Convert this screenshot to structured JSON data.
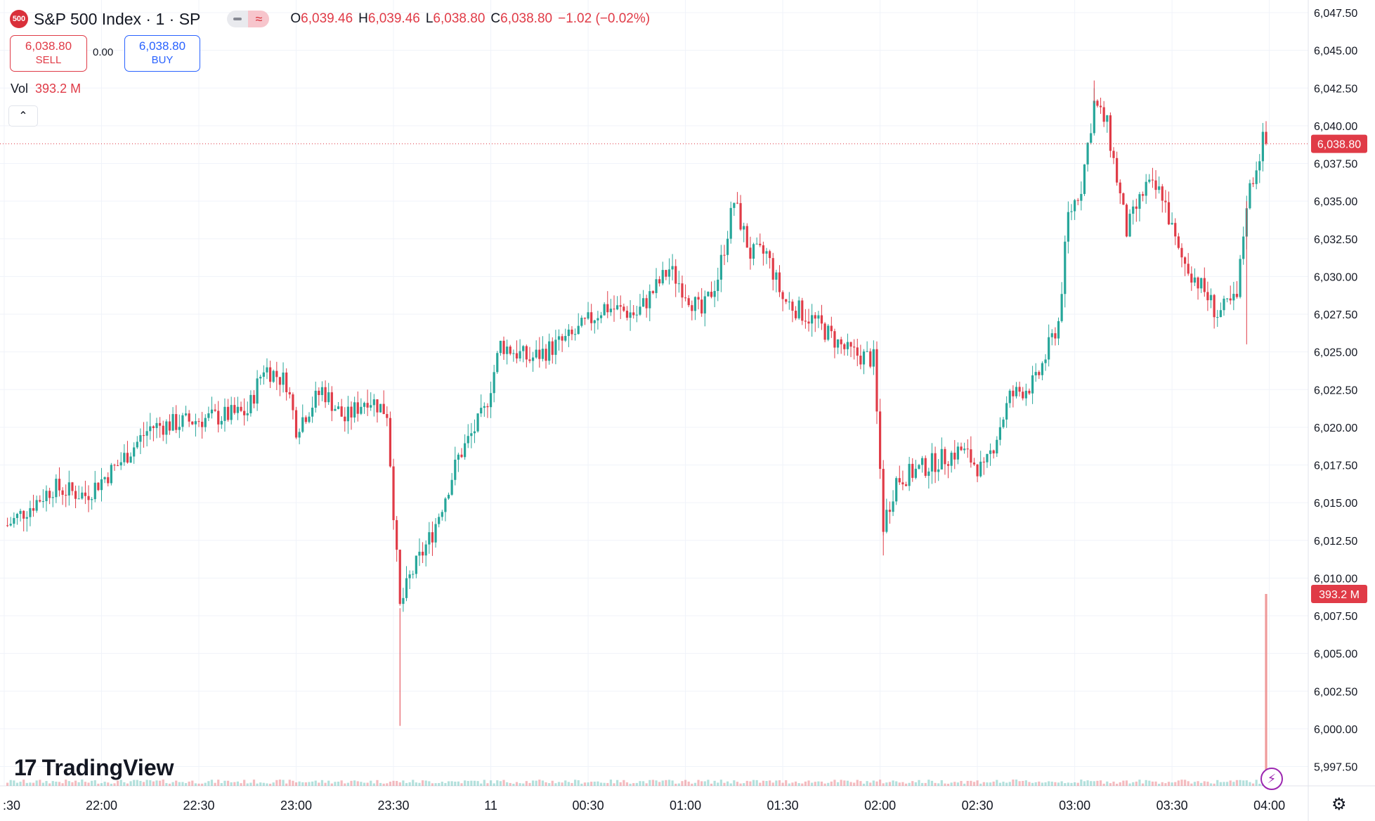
{
  "header": {
    "symbol_badge": "500",
    "title": "S&P 500 Index · 1 · SP",
    "ohlc": [
      {
        "key": "O",
        "value": "6,039.46"
      },
      {
        "key": "H",
        "value": "6,039.46"
      },
      {
        "key": "L",
        "value": "6,038.80"
      },
      {
        "key": "C",
        "value": "6,038.80"
      }
    ],
    "change": "−1.02 (−0.02%)"
  },
  "trade": {
    "sell_price": "6,038.80",
    "sell_label": "SELL",
    "spread": "0.00",
    "buy_price": "6,038.80",
    "buy_label": "BUY"
  },
  "volume": {
    "label": "Vol",
    "value": "393.2 M",
    "badge": "393.2 M"
  },
  "logo": {
    "mark": "17",
    "text": "TradingView"
  },
  "icons": {
    "collapse": "chevron-up-icon",
    "bolt": "lightning-icon",
    "settings": "gear-icon"
  },
  "colors": {
    "up": "#26a69a",
    "down": "#e03b47",
    "price_badge": "#e03b47",
    "volume_spike": "#ef9a9a"
  },
  "chart_data": {
    "type": "candlestick",
    "ylim": [
      5996.0,
      6048.5
    ],
    "y_ticks": [
      "6,047.50",
      "6,045.00",
      "6,042.50",
      "6,040.00",
      "6,037.50",
      "6,035.00",
      "6,032.50",
      "6,030.00",
      "6,027.50",
      "6,025.00",
      "6,022.50",
      "6,020.00",
      "6,017.50",
      "6,015.00",
      "6,012.50",
      "6,010.00",
      "6,007.50",
      "6,005.00",
      "6,002.50",
      "6,000.00",
      "5,997.50"
    ],
    "x_ticks": [
      ":30",
      "22:00",
      "22:30",
      "23:00",
      "23:30",
      "11",
      "00:30",
      "01:00",
      "01:30",
      "02:00",
      "02:30",
      "03:00",
      "03:30",
      "04:00"
    ],
    "last_price": "6,038.80",
    "last_price_value": 6038.8,
    "price_path": [
      {
        "t": "21:31",
        "p": 6013.5
      },
      {
        "t": "21:45",
        "p": 6016.0
      },
      {
        "t": "21:55",
        "p": 6015.5
      },
      {
        "t": "22:05",
        "p": 6017.5
      },
      {
        "t": "22:15",
        "p": 6020.0
      },
      {
        "t": "22:30",
        "p": 6020.5
      },
      {
        "t": "22:45",
        "p": 6021.0
      },
      {
        "t": "22:50",
        "p": 6024.0
      },
      {
        "t": "22:57",
        "p": 6023.0
      },
      {
        "t": "23:00",
        "p": 6020.0
      },
      {
        "t": "23:08",
        "p": 6022.5
      },
      {
        "t": "23:15",
        "p": 6020.5
      },
      {
        "t": "23:22",
        "p": 6022.0
      },
      {
        "t": "23:28",
        "p": 6021.0
      },
      {
        "t": "23:32",
        "p": 6008.0
      },
      {
        "t": "23:35",
        "p": 6010.0
      },
      {
        "t": "23:42",
        "p": 6013.0
      },
      {
        "t": "23:50",
        "p": 6018.0
      },
      {
        "t": "23:58",
        "p": 6021.0
      },
      {
        "t": "00:03",
        "p": 6025.5
      },
      {
        "t": "00:12",
        "p": 6024.5
      },
      {
        "t": "00:25",
        "p": 6026.0
      },
      {
        "t": "00:35",
        "p": 6028.0
      },
      {
        "t": "00:45",
        "p": 6027.5
      },
      {
        "t": "00:55",
        "p": 6030.5
      },
      {
        "t": "01:05",
        "p": 6027.5
      },
      {
        "t": "01:10",
        "p": 6030.0
      },
      {
        "t": "01:15",
        "p": 6035.0
      },
      {
        "t": "01:20",
        "p": 6031.5
      },
      {
        "t": "01:25",
        "p": 6031.5
      },
      {
        "t": "01:30",
        "p": 6028.5
      },
      {
        "t": "01:40",
        "p": 6027.0
      },
      {
        "t": "01:50",
        "p": 6025.0
      },
      {
        "t": "01:58",
        "p": 6024.5
      },
      {
        "t": "02:01",
        "p": 6013.5
      },
      {
        "t": "02:05",
        "p": 6016.5
      },
      {
        "t": "02:15",
        "p": 6017.5
      },
      {
        "t": "02:25",
        "p": 6018.5
      },
      {
        "t": "02:32",
        "p": 6017.0
      },
      {
        "t": "02:40",
        "p": 6022.0
      },
      {
        "t": "02:48",
        "p": 6023.0
      },
      {
        "t": "02:55",
        "p": 6027.0
      },
      {
        "t": "02:58",
        "p": 6034.0
      },
      {
        "t": "03:02",
        "p": 6036.0
      },
      {
        "t": "03:06",
        "p": 6041.5
      },
      {
        "t": "03:10",
        "p": 6040.0
      },
      {
        "t": "03:16",
        "p": 6033.0
      },
      {
        "t": "03:22",
        "p": 6036.0
      },
      {
        "t": "03:27",
        "p": 6035.5
      },
      {
        "t": "03:32",
        "p": 6031.5
      },
      {
        "t": "03:40",
        "p": 6029.0
      },
      {
        "t": "03:44",
        "p": 6027.5
      },
      {
        "t": "03:50",
        "p": 6028.5
      },
      {
        "t": "03:53",
        "p": 6035.0
      },
      {
        "t": "03:58",
        "p": 6039.0
      },
      {
        "t": "03:59",
        "p": 6038.8
      }
    ]
  }
}
